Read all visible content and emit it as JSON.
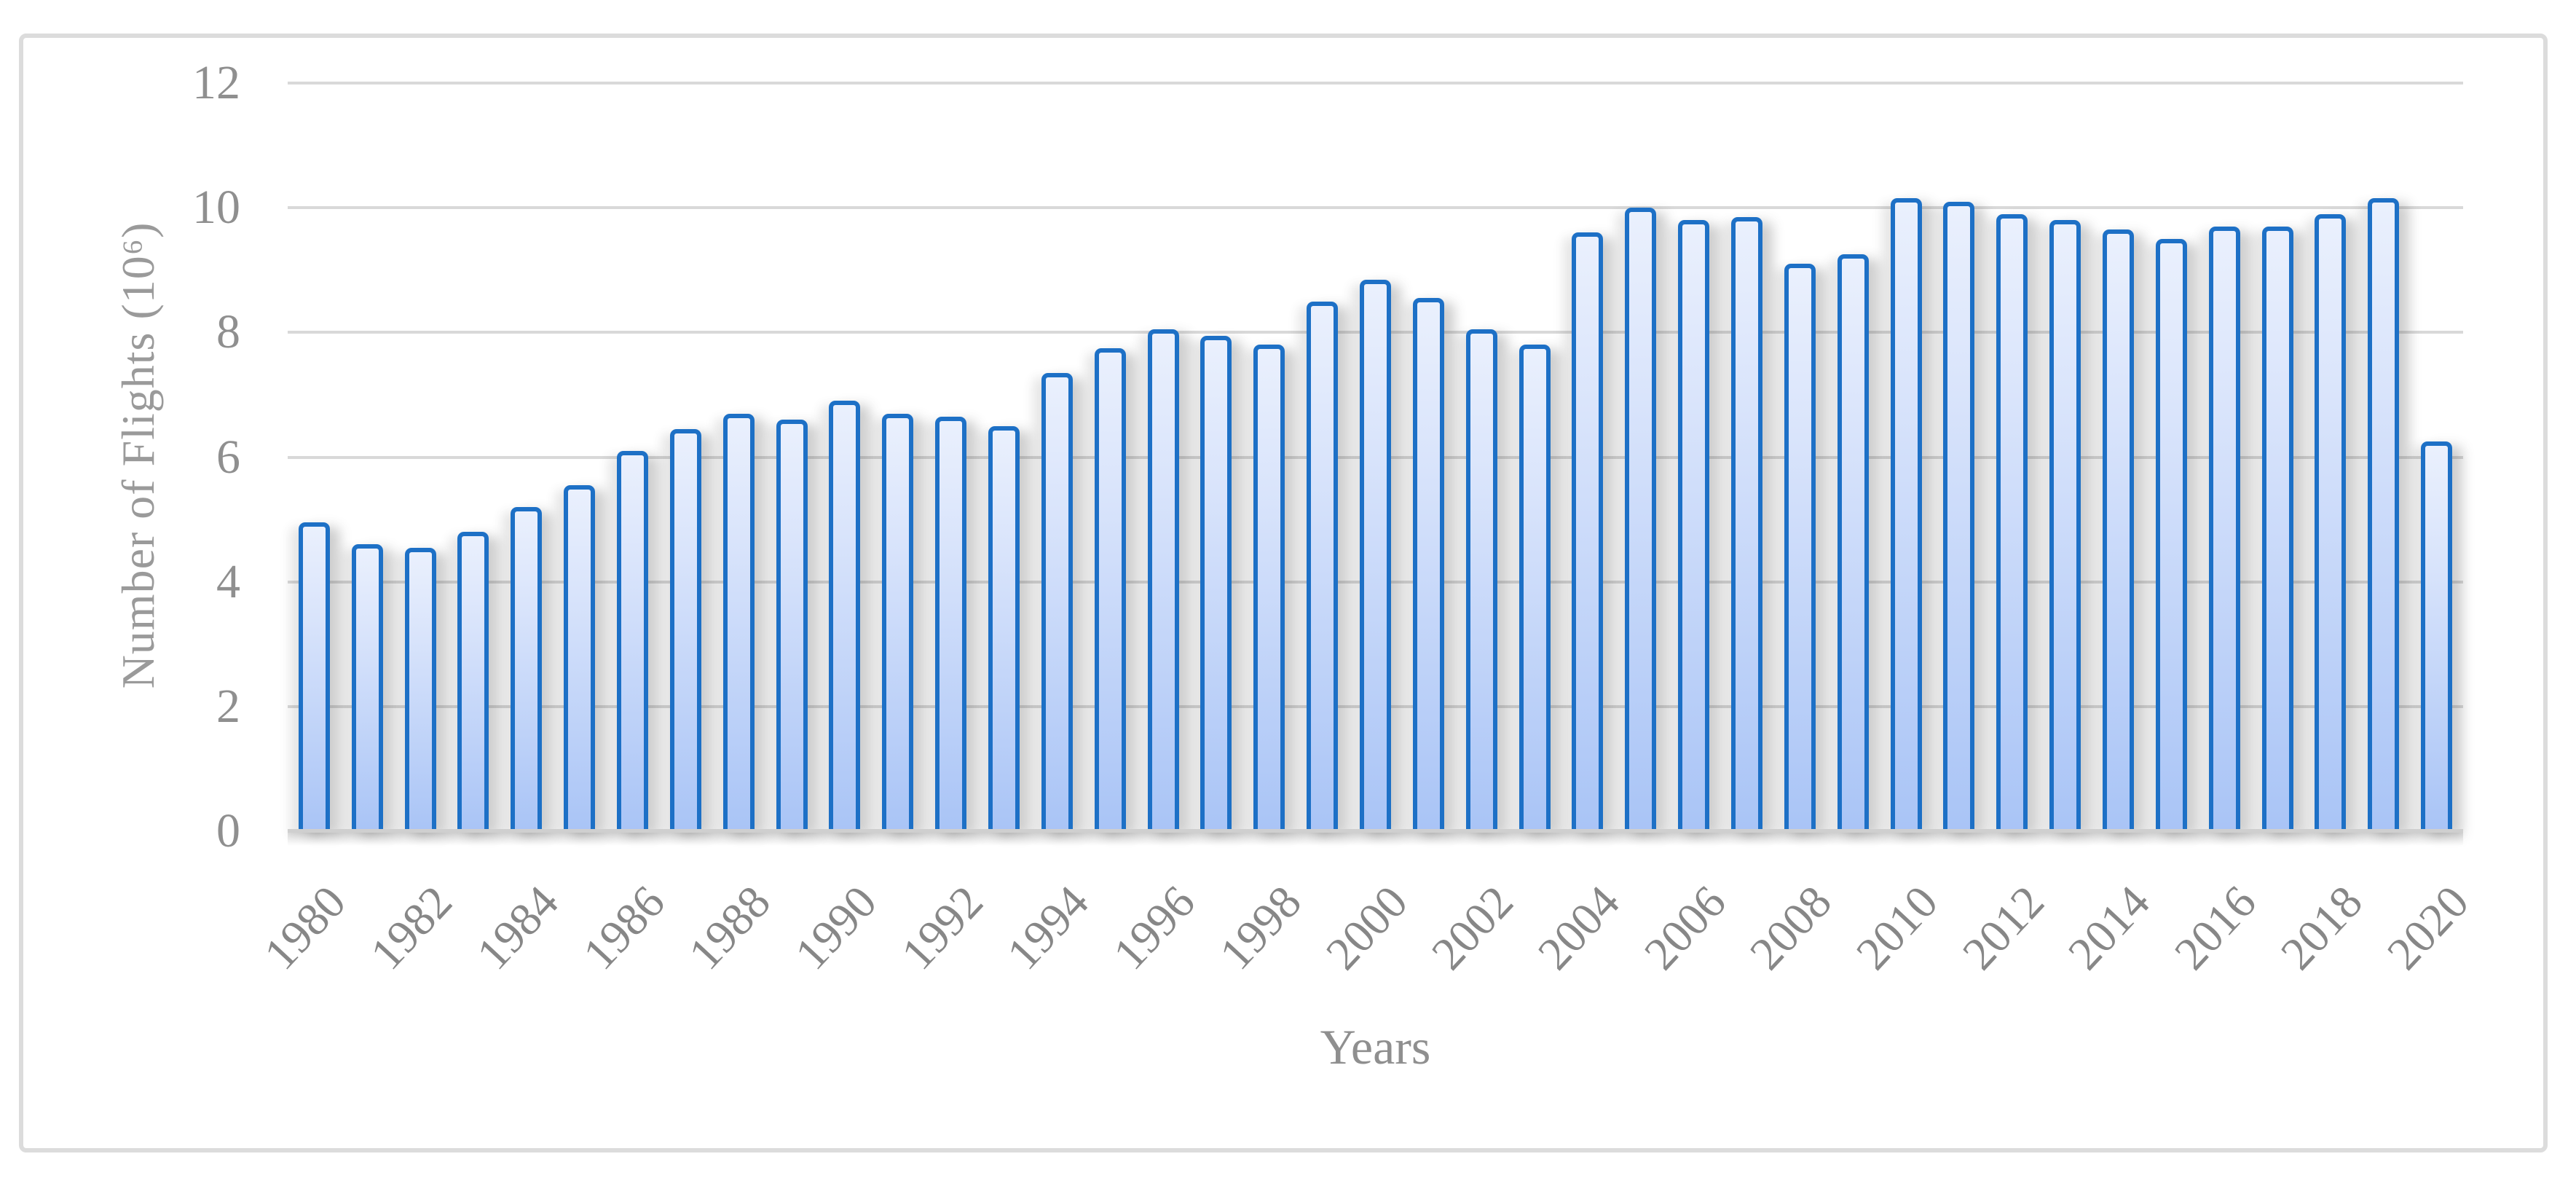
{
  "figure": {
    "y_axis_title": "Number of Flights (10⁶)",
    "x_axis_title": "Years"
  },
  "chart_data": {
    "type": "bar",
    "title": "",
    "xlabel": "Years",
    "ylabel": "Number of Flights (10⁶)",
    "categories": [
      1980,
      1981,
      1982,
      1983,
      1984,
      1985,
      1986,
      1987,
      1988,
      1989,
      1990,
      1991,
      1992,
      1993,
      1994,
      1995,
      1996,
      1997,
      1998,
      1999,
      2000,
      2001,
      2002,
      2003,
      2004,
      2005,
      2006,
      2007,
      2008,
      2009,
      2010,
      2011,
      2012,
      2013,
      2014,
      2015,
      2016,
      2017,
      2018,
      2019,
      2020
    ],
    "values": [
      4.95,
      4.6,
      4.55,
      4.8,
      5.2,
      5.55,
      6.1,
      6.45,
      6.7,
      6.6,
      6.9,
      6.7,
      6.65,
      6.5,
      7.35,
      7.75,
      8.05,
      7.95,
      7.8,
      8.5,
      8.85,
      8.55,
      8.05,
      7.8,
      9.6,
      10.0,
      9.8,
      9.85,
      9.1,
      9.25,
      10.15,
      10.1,
      9.9,
      9.8,
      9.65,
      9.5,
      9.7,
      9.7,
      9.9,
      10.15,
      6.25
    ],
    "ylim": [
      0,
      12
    ],
    "yticks": [
      0,
      2,
      4,
      6,
      8,
      10,
      12
    ],
    "xtick_labels": [
      "1980",
      "1982",
      "1984",
      "1986",
      "1988",
      "1990",
      "1992",
      "1994",
      "1996",
      "1998",
      "2000",
      "2002",
      "2004",
      "2006",
      "2008",
      "2010",
      "2012",
      "2014",
      "2016",
      "2018",
      "2020"
    ],
    "grid": true,
    "legend": false,
    "layout": {
      "bar_border_color": "#1d70c6",
      "bar_fill_top": "#eaf0fd",
      "bar_fill_bottom": "#a9c4f6",
      "gridline_color": "#d9d9d9",
      "axis_text_color": "#8f8f8f",
      "frame_color": "#dcdcdc"
    }
  }
}
